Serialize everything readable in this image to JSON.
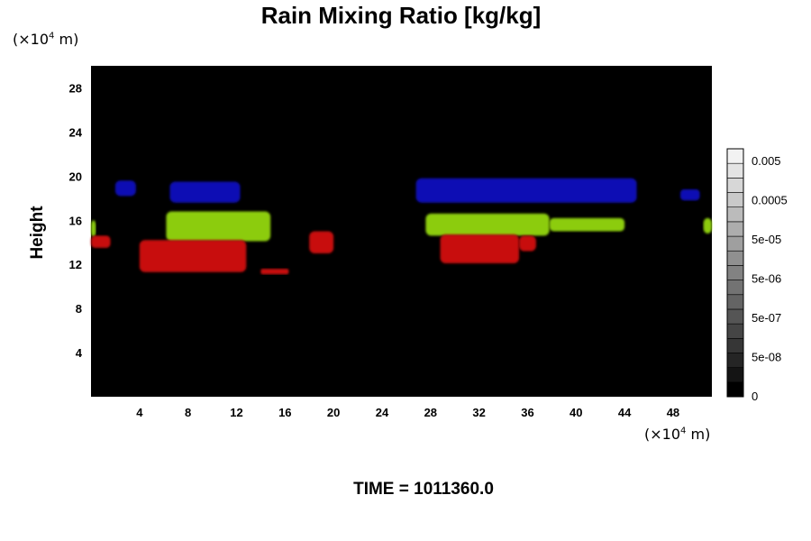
{
  "title": "Rain Mixing Ratio [kg/kg]",
  "y_unit": {
    "prefix": "(×10",
    "exp": "4",
    "suffix": " m)"
  },
  "x_unit": {
    "prefix": "(×10",
    "exp": "4",
    "suffix": " m)"
  },
  "footer": "TIME = 1011360.0",
  "chart_data": {
    "type": "heatmap",
    "title": "Rain Mixing Ratio [kg/kg]",
    "ylabel": "Height",
    "xlabel": "",
    "x_ticks": [
      "4",
      "8",
      "12",
      "16",
      "20",
      "24",
      "28",
      "32",
      "36",
      "40",
      "44",
      "48"
    ],
    "y_ticks": [
      "4",
      "8",
      "12",
      "16",
      "20",
      "24",
      "28"
    ],
    "xlim": [
      0,
      51.2
    ],
    "ylim": [
      0,
      30
    ],
    "background_color": "#000000",
    "colorbar": {
      "ticks": [
        "0.005",
        "0.0005",
        "5e-05",
        "5e-06",
        "5e-07",
        "5e-08",
        "0"
      ],
      "levels": 17,
      "bottom_color": "#000000",
      "top_color": "#f2f2f2"
    },
    "regions": [
      {
        "color": "#1010b4",
        "x": [
          2.0,
          3.7
        ],
        "y": [
          18.2,
          19.6
        ]
      },
      {
        "color": "#1010b4",
        "x": [
          6.5,
          12.3
        ],
        "y": [
          17.6,
          19.5
        ]
      },
      {
        "color": "#1010b4",
        "x": [
          26.8,
          45.0
        ],
        "y": [
          17.6,
          19.8
        ]
      },
      {
        "color": "#1010b4",
        "x": [
          48.6,
          50.2
        ],
        "y": [
          17.8,
          18.8
        ]
      },
      {
        "color": "#8ccc0a",
        "x": [
          6.2,
          14.8
        ],
        "y": [
          14.1,
          16.8
        ]
      },
      {
        "color": "#8ccc0a",
        "x": [
          27.6,
          37.8
        ],
        "y": [
          14.6,
          16.6
        ]
      },
      {
        "color": "#8ccc0a",
        "x": [
          37.8,
          44.0
        ],
        "y": [
          15.0,
          16.2
        ]
      },
      {
        "color": "#8ccc0a",
        "x": [
          0.0,
          0.4
        ],
        "y": [
          14.5,
          16.0
        ]
      },
      {
        "color": "#8ccc0a",
        "x": [
          50.5,
          51.2
        ],
        "y": [
          14.8,
          16.2
        ]
      },
      {
        "color": "#c81010",
        "x": [
          4.0,
          12.8
        ],
        "y": [
          11.3,
          14.2
        ]
      },
      {
        "color": "#c81010",
        "x": [
          0.0,
          1.6
        ],
        "y": [
          13.5,
          14.6
        ]
      },
      {
        "color": "#c81010",
        "x": [
          18.0,
          20.0
        ],
        "y": [
          13.0,
          15.0
        ]
      },
      {
        "color": "#c81010",
        "x": [
          28.8,
          35.3
        ],
        "y": [
          12.1,
          14.7
        ]
      },
      {
        "color": "#c81010",
        "x": [
          35.3,
          36.7
        ],
        "y": [
          13.2,
          14.6
        ]
      },
      {
        "color": "#c81010",
        "x": [
          14.0,
          16.3
        ],
        "y": [
          11.1,
          11.6
        ]
      }
    ]
  }
}
